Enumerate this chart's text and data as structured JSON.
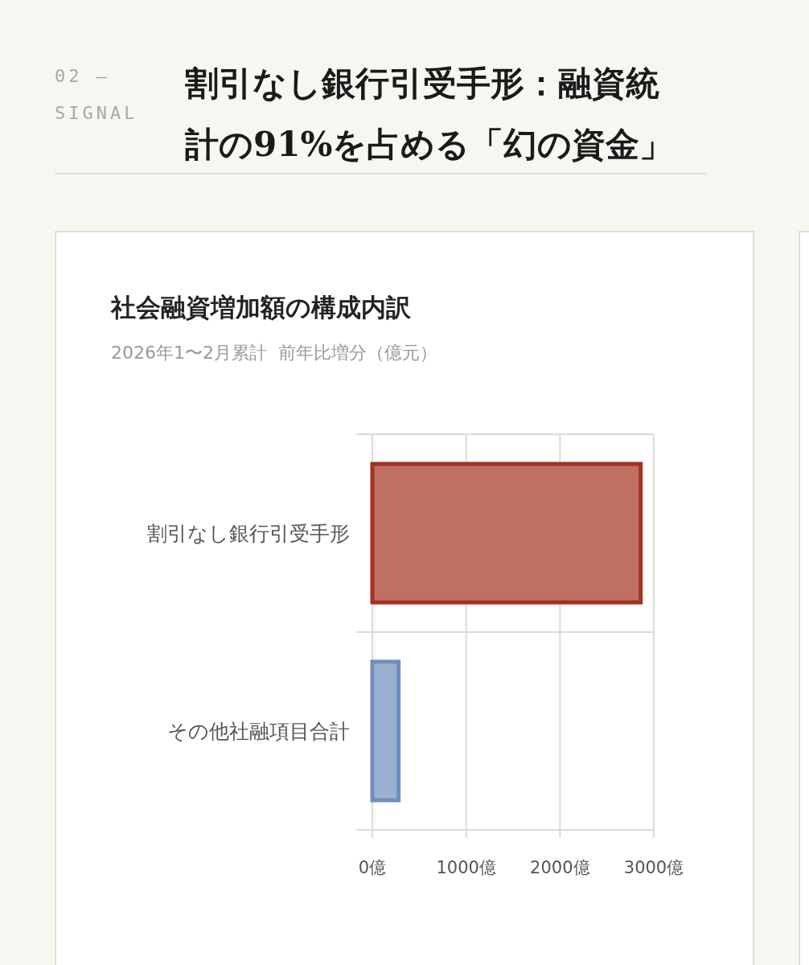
{
  "chart_data": {
    "type": "bar",
    "orientation": "horizontal",
    "title": "社会融資増加額の構成内訳",
    "subtitle": "2026年1〜2月累計  前年比増分（億元）",
    "annotations": [
      "02 — SIGNAL",
      "割引なし銀行引受手形：融資統計の91%を占める「幻の資金」"
    ],
    "categories": [
      "割引なし銀行引受手形",
      "その他社融項目合計"
    ],
    "values": [
      2860,
      280
    ],
    "colors": [
      "#c06f63",
      "#9bb0d0"
    ],
    "xlim": [
      0,
      3000
    ],
    "xticks": [
      {
        "value": 0,
        "label": "0億"
      },
      {
        "value": 1000,
        "label": "1000億"
      },
      {
        "value": 2000,
        "label": "2000億"
      },
      {
        "value": 3000,
        "label": "3000億"
      }
    ],
    "grid": true
  }
}
